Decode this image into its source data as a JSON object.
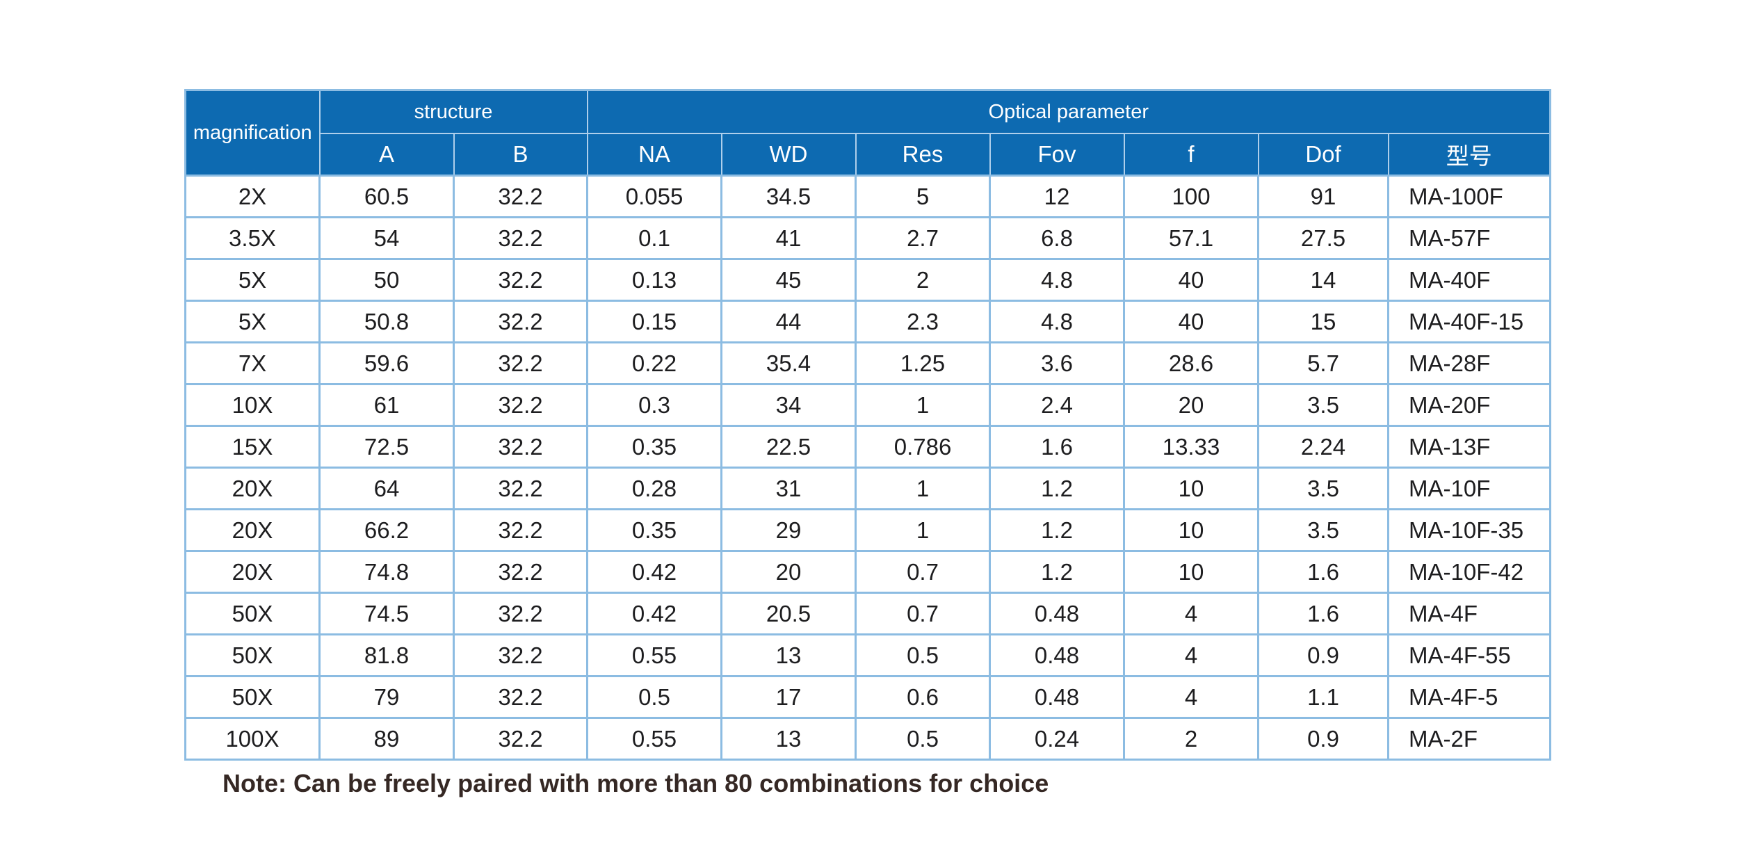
{
  "colors": {
    "header_bg": "#0d6ab1",
    "header_text": "#ffffff",
    "grid_line": "#8cbce2",
    "header_divider": "#aecfeb",
    "cell_text": "#1d1d1f",
    "note_text": "#352824",
    "page_bg": "#ffffff"
  },
  "table": {
    "header": {
      "magnification": "magnification",
      "structure": "structure",
      "optical_parameter": "Optical parameter"
    },
    "sub_headers": [
      "A",
      "B",
      "NA",
      "WD",
      "Res",
      "Fov",
      "f",
      "Dof",
      "型号"
    ],
    "column_keys": [
      "magnification",
      "A",
      "B",
      "NA",
      "WD",
      "Res",
      "Fov",
      "f",
      "Dof",
      "model"
    ],
    "rows": [
      [
        "2X",
        "60.5",
        "32.2",
        "0.055",
        "34.5",
        "5",
        "12",
        "100",
        "91",
        "MA-100F"
      ],
      [
        "3.5X",
        "54",
        "32.2",
        "0.1",
        "41",
        "2.7",
        "6.8",
        "57.1",
        "27.5",
        "MA-57F"
      ],
      [
        "5X",
        "50",
        "32.2",
        "0.13",
        "45",
        "2",
        "4.8",
        "40",
        "14",
        "MA-40F"
      ],
      [
        "5X",
        "50.8",
        "32.2",
        "0.15",
        "44",
        "2.3",
        "4.8",
        "40",
        "15",
        "MA-40F-15"
      ],
      [
        "7X",
        "59.6",
        "32.2",
        "0.22",
        "35.4",
        "1.25",
        "3.6",
        "28.6",
        "5.7",
        "MA-28F"
      ],
      [
        "10X",
        "61",
        "32.2",
        "0.3",
        "34",
        "1",
        "2.4",
        "20",
        "3.5",
        "MA-20F"
      ],
      [
        "15X",
        "72.5",
        "32.2",
        "0.35",
        "22.5",
        "0.786",
        "1.6",
        "13.33",
        "2.24",
        "MA-13F"
      ],
      [
        "20X",
        "64",
        "32.2",
        "0.28",
        "31",
        "1",
        "1.2",
        "10",
        "3.5",
        "MA-10F"
      ],
      [
        "20X",
        "66.2",
        "32.2",
        "0.35",
        "29",
        "1",
        "1.2",
        "10",
        "3.5",
        "MA-10F-35"
      ],
      [
        "20X",
        "74.8",
        "32.2",
        "0.42",
        "20",
        "0.7",
        "1.2",
        "10",
        "1.6",
        "MA-10F-42"
      ],
      [
        "50X",
        "74.5",
        "32.2",
        "0.42",
        "20.5",
        "0.7",
        "0.48",
        "4",
        "1.6",
        "MA-4F"
      ],
      [
        "50X",
        "81.8",
        "32.2",
        "0.55",
        "13",
        "0.5",
        "0.48",
        "4",
        "0.9",
        "MA-4F-55"
      ],
      [
        "50X",
        "79",
        "32.2",
        "0.5",
        "17",
        "0.6",
        "0.48",
        "4",
        "1.1",
        "MA-4F-5"
      ],
      [
        "100X",
        "89",
        "32.2",
        "0.55",
        "13",
        "0.5",
        "0.24",
        "2",
        "0.9",
        "MA-2F"
      ]
    ]
  },
  "note": "Note: Can be freely paired with more than 80 combinations for choice"
}
